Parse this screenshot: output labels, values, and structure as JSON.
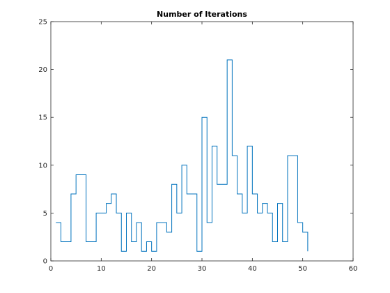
{
  "chart_data": {
    "type": "line",
    "style": "stairs",
    "title": "Number of Iterations",
    "xlabel": "",
    "ylabel": "",
    "xlim": [
      0,
      60
    ],
    "ylim": [
      0,
      25
    ],
    "xticks": [
      0,
      10,
      20,
      30,
      40,
      50,
      60
    ],
    "yticks": [
      0,
      5,
      10,
      15,
      20,
      25
    ],
    "grid": false,
    "box": true,
    "line_color": "#0072BD",
    "series": [
      {
        "x": [
          1,
          2,
          3,
          4,
          5,
          6,
          7,
          8,
          9,
          10,
          11,
          12,
          13,
          14,
          15,
          16,
          17,
          18,
          19,
          20,
          21,
          22,
          23,
          24,
          25,
          26,
          27,
          28,
          29,
          30,
          31,
          32,
          33,
          34,
          35,
          36,
          37,
          38,
          39,
          40,
          41,
          42,
          43,
          44,
          45,
          46,
          47,
          48,
          49,
          50,
          51
        ],
        "values": [
          4,
          2,
          2,
          7,
          9,
          9,
          2,
          2,
          5,
          5,
          6,
          7,
          5,
          1,
          5,
          2,
          4,
          1,
          2,
          1,
          4,
          4,
          3,
          8,
          5,
          10,
          7,
          7,
          1,
          15,
          4,
          12,
          8,
          8,
          21,
          11,
          7,
          5,
          12,
          7,
          5,
          6,
          5,
          2,
          6,
          2,
          11,
          11,
          4,
          3,
          1
        ]
      }
    ]
  }
}
